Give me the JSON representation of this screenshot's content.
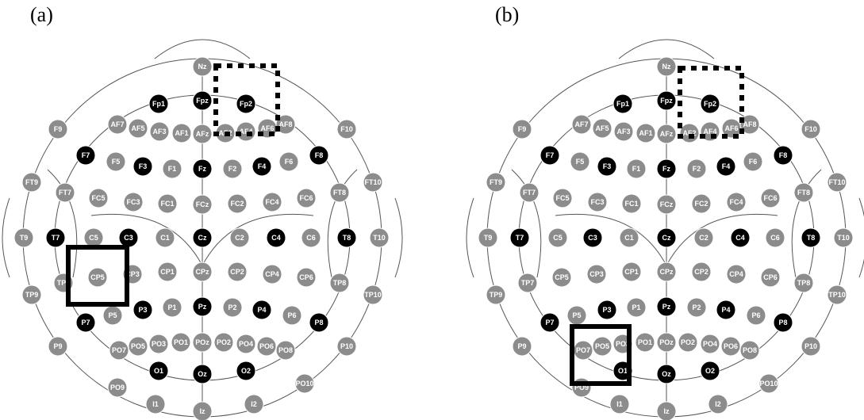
{
  "panels": [
    {
      "label": "(a)",
      "solid_box_electrodes": [
        "CP5"
      ],
      "dotted_box_electrodes": [
        "Fp2"
      ]
    },
    {
      "label": "(b)",
      "solid_box_electrodes": [
        "PO7",
        "PO5"
      ],
      "dotted_box_electrodes": [
        "Fp2"
      ]
    }
  ],
  "electrodes": [
    {
      "name": "Nz"
    },
    {
      "name": "Fp1",
      "selected": true
    },
    {
      "name": "Fpz",
      "selected": true
    },
    {
      "name": "Fp2",
      "selected": true
    },
    {
      "name": "F9"
    },
    {
      "name": "AF7"
    },
    {
      "name": "AF5"
    },
    {
      "name": "AF3"
    },
    {
      "name": "AF1"
    },
    {
      "name": "AFz"
    },
    {
      "name": "AF2"
    },
    {
      "name": "AF4"
    },
    {
      "name": "AF6"
    },
    {
      "name": "AF8"
    },
    {
      "name": "F10"
    },
    {
      "name": "F7",
      "selected": true
    },
    {
      "name": "F5"
    },
    {
      "name": "F3",
      "selected": true
    },
    {
      "name": "F1"
    },
    {
      "name": "Fz",
      "selected": true
    },
    {
      "name": "F2"
    },
    {
      "name": "F4",
      "selected": true
    },
    {
      "name": "F6"
    },
    {
      "name": "F8",
      "selected": true
    },
    {
      "name": "FT9"
    },
    {
      "name": "FT7"
    },
    {
      "name": "FC5"
    },
    {
      "name": "FC3"
    },
    {
      "name": "FC1"
    },
    {
      "name": "FCz"
    },
    {
      "name": "FC2"
    },
    {
      "name": "FC4"
    },
    {
      "name": "FC6"
    },
    {
      "name": "FT8"
    },
    {
      "name": "FT10"
    },
    {
      "name": "T9"
    },
    {
      "name": "T7",
      "selected": true
    },
    {
      "name": "C5"
    },
    {
      "name": "C3",
      "selected": true
    },
    {
      "name": "C1"
    },
    {
      "name": "Cz",
      "selected": true
    },
    {
      "name": "C2"
    },
    {
      "name": "C4",
      "selected": true
    },
    {
      "name": "C6"
    },
    {
      "name": "T8",
      "selected": true
    },
    {
      "name": "T10"
    },
    {
      "name": "TP9"
    },
    {
      "name": "TP7"
    },
    {
      "name": "CP5"
    },
    {
      "name": "CP3"
    },
    {
      "name": "CP1"
    },
    {
      "name": "CPz"
    },
    {
      "name": "CP2"
    },
    {
      "name": "CP4"
    },
    {
      "name": "CP6"
    },
    {
      "name": "TP8"
    },
    {
      "name": "TP10"
    },
    {
      "name": "P7",
      "selected": true
    },
    {
      "name": "P5"
    },
    {
      "name": "P3",
      "selected": true
    },
    {
      "name": "P1"
    },
    {
      "name": "Pz",
      "selected": true
    },
    {
      "name": "P2"
    },
    {
      "name": "P4",
      "selected": true
    },
    {
      "name": "P6"
    },
    {
      "name": "P8",
      "selected": true
    },
    {
      "name": "P9"
    },
    {
      "name": "PO7"
    },
    {
      "name": "PO5"
    },
    {
      "name": "PO3"
    },
    {
      "name": "PO1"
    },
    {
      "name": "POz"
    },
    {
      "name": "PO2"
    },
    {
      "name": "PO4"
    },
    {
      "name": "PO6"
    },
    {
      "name": "PO8"
    },
    {
      "name": "P10"
    },
    {
      "name": "O1",
      "selected": true
    },
    {
      "name": "Oz",
      "selected": true
    },
    {
      "name": "O2",
      "selected": true
    },
    {
      "name": "PO9"
    },
    {
      "name": "PO10"
    },
    {
      "name": "I1"
    },
    {
      "name": "Iz"
    },
    {
      "name": "I2"
    }
  ],
  "colors": {
    "selected": "#000000",
    "unselected": "#8c8c8c",
    "outline": "#555555",
    "box": "#000000"
  }
}
